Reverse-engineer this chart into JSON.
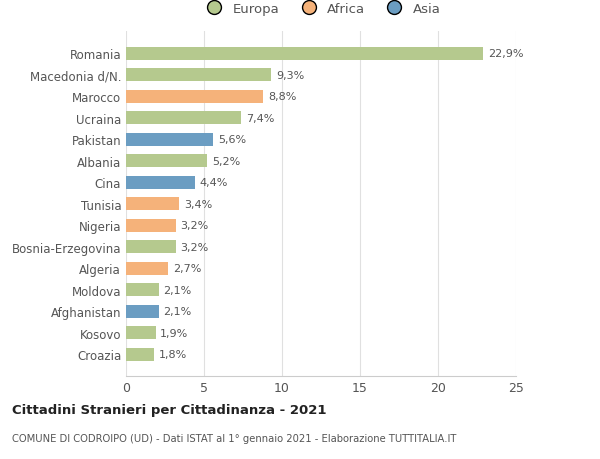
{
  "categories": [
    "Croazia",
    "Kosovo",
    "Afghanistan",
    "Moldova",
    "Algeria",
    "Bosnia-Erzegovina",
    "Nigeria",
    "Tunisia",
    "Cina",
    "Albania",
    "Pakistan",
    "Ucraina",
    "Marocco",
    "Macedonia d/N.",
    "Romania"
  ],
  "values": [
    1.8,
    1.9,
    2.1,
    2.1,
    2.7,
    3.2,
    3.2,
    3.4,
    4.4,
    5.2,
    5.6,
    7.4,
    8.8,
    9.3,
    22.9
  ],
  "labels": [
    "1,8%",
    "1,9%",
    "2,1%",
    "2,1%",
    "2,7%",
    "3,2%",
    "3,2%",
    "3,4%",
    "4,4%",
    "5,2%",
    "5,6%",
    "7,4%",
    "8,8%",
    "9,3%",
    "22,9%"
  ],
  "colors": [
    "#b5c98e",
    "#b5c98e",
    "#6b9dc2",
    "#b5c98e",
    "#f5b27a",
    "#b5c98e",
    "#f5b27a",
    "#f5b27a",
    "#6b9dc2",
    "#b5c98e",
    "#6b9dc2",
    "#b5c98e",
    "#f5b27a",
    "#b5c98e",
    "#b5c98e"
  ],
  "continent_colors": {
    "Europa": "#b5c98e",
    "Africa": "#f5b27a",
    "Asia": "#6b9dc2"
  },
  "xlim": [
    0,
    25
  ],
  "xticks": [
    0,
    5,
    10,
    15,
    20,
    25
  ],
  "title": "Cittadini Stranieri per Cittadinanza - 2021",
  "subtitle": "COMUNE DI CODROIPO (UD) - Dati ISTAT al 1° gennaio 2021 - Elaborazione TUTTITALIA.IT",
  "bg_color": "#ffffff",
  "grid_color": "#e0e0e0"
}
